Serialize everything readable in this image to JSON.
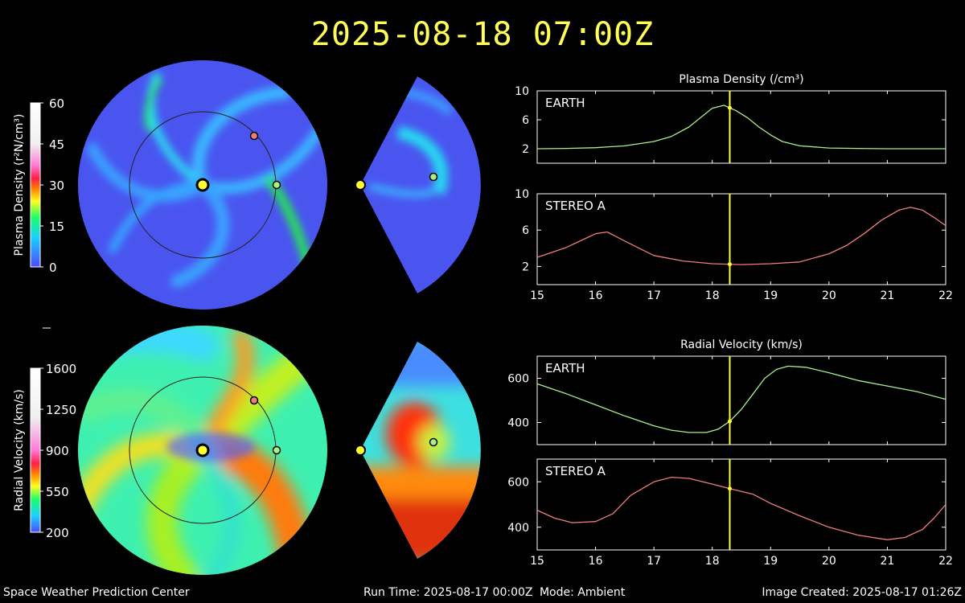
{
  "title": "2025-08-18 07:00Z",
  "footer": {
    "org": "Space Weather Prediction Center",
    "run_time": "Run Time: 2025-08-17 00:00Z",
    "mode": "Mode: Ambient",
    "created": "Image Created: 2025-08-17 01:26Z"
  },
  "colors": {
    "earth": "#a8f08a",
    "stereo": "#f07c7c",
    "cursor": "#ffff33",
    "frame": "#ffffff"
  },
  "colorbars": {
    "density": {
      "label": "Plasma Density (r²N/cm³)",
      "ticks": [
        "60",
        "45",
        "30",
        "15",
        "0"
      ]
    },
    "velocity": {
      "label": "Radial Velocity (km/s)",
      "ticks": [
        "1600",
        "1250",
        "900",
        "550",
        "200"
      ]
    }
  },
  "chart_data": [
    {
      "type": "line",
      "title": "Plasma Density (/cm³)",
      "xlim": [
        15,
        22
      ],
      "x_ticks": [
        "15",
        "16",
        "17",
        "18",
        "19",
        "20",
        "21",
        "22"
      ],
      "cursor_x": 18.3,
      "panels": [
        {
          "name": "EARTH",
          "ylim": [
            0,
            10
          ],
          "y_ticks": [
            "10",
            "6",
            "2"
          ],
          "y_tick_values": [
            10,
            6,
            2
          ],
          "series": [
            {
              "name": "EARTH",
              "x": [
                15,
                15.5,
                16,
                16.5,
                17,
                17.3,
                17.6,
                17.8,
                18,
                18.2,
                18.4,
                18.6,
                18.8,
                19,
                19.2,
                19.5,
                20,
                20.5,
                21,
                21.5,
                22
              ],
              "values": [
                2,
                2.05,
                2.15,
                2.4,
                3,
                3.7,
                5,
                6.3,
                7.6,
                8,
                7.3,
                6.3,
                5,
                3.9,
                3,
                2.4,
                2.1,
                2.05,
                2,
                2,
                2
              ]
            }
          ]
        },
        {
          "name": "STEREO A",
          "ylim": [
            0,
            10
          ],
          "y_ticks": [
            "10",
            "6",
            "2"
          ],
          "y_tick_values": [
            10,
            6,
            2
          ],
          "series": [
            {
              "name": "STEREO A",
              "x": [
                15,
                15.5,
                15.8,
                16,
                16.2,
                16.5,
                17,
                17.5,
                18,
                18.5,
                19,
                19.5,
                20,
                20.3,
                20.6,
                20.9,
                21.2,
                21.4,
                21.6,
                21.8,
                22
              ],
              "values": [
                3,
                4.1,
                5,
                5.6,
                5.8,
                4.8,
                3.2,
                2.6,
                2.3,
                2.2,
                2.3,
                2.5,
                3.4,
                4.3,
                5.6,
                7.1,
                8.2,
                8.5,
                8.2,
                7.4,
                6.5
              ]
            }
          ]
        }
      ]
    },
    {
      "type": "line",
      "title": "Radial Velocity (km/s)",
      "xlim": [
        15,
        22
      ],
      "x_ticks": [
        "15",
        "16",
        "17",
        "18",
        "19",
        "20",
        "21",
        "22"
      ],
      "cursor_x": 18.3,
      "panels": [
        {
          "name": "EARTH",
          "ylim": [
            300,
            700
          ],
          "y_ticks": [
            "600",
            "400"
          ],
          "y_tick_values": [
            600,
            400
          ],
          "series": [
            {
              "name": "EARTH",
              "x": [
                15,
                15.5,
                16,
                16.5,
                17,
                17.3,
                17.6,
                17.9,
                18.1,
                18.3,
                18.5,
                18.7,
                18.9,
                19.1,
                19.3,
                19.6,
                20,
                20.5,
                21,
                21.5,
                22
              ],
              "values": [
                575,
                530,
                480,
                430,
                385,
                365,
                355,
                355,
                370,
                405,
                460,
                530,
                600,
                640,
                655,
                650,
                625,
                590,
                565,
                540,
                505
              ]
            }
          ]
        },
        {
          "name": "STEREO A",
          "ylim": [
            300,
            700
          ],
          "y_ticks": [
            "600",
            "400"
          ],
          "y_tick_values": [
            600,
            400
          ],
          "series": [
            {
              "name": "STEREO A",
              "x": [
                15,
                15.3,
                15.6,
                16,
                16.3,
                16.6,
                17,
                17.3,
                17.6,
                18,
                18.3,
                18.7,
                19,
                19.5,
                20,
                20.5,
                21,
                21.3,
                21.6,
                21.8,
                22
              ],
              "values": [
                475,
                440,
                420,
                425,
                460,
                540,
                600,
                620,
                615,
                590,
                570,
                545,
                505,
                450,
                400,
                365,
                345,
                355,
                390,
                440,
                500
              ]
            }
          ]
        }
      ]
    }
  ]
}
